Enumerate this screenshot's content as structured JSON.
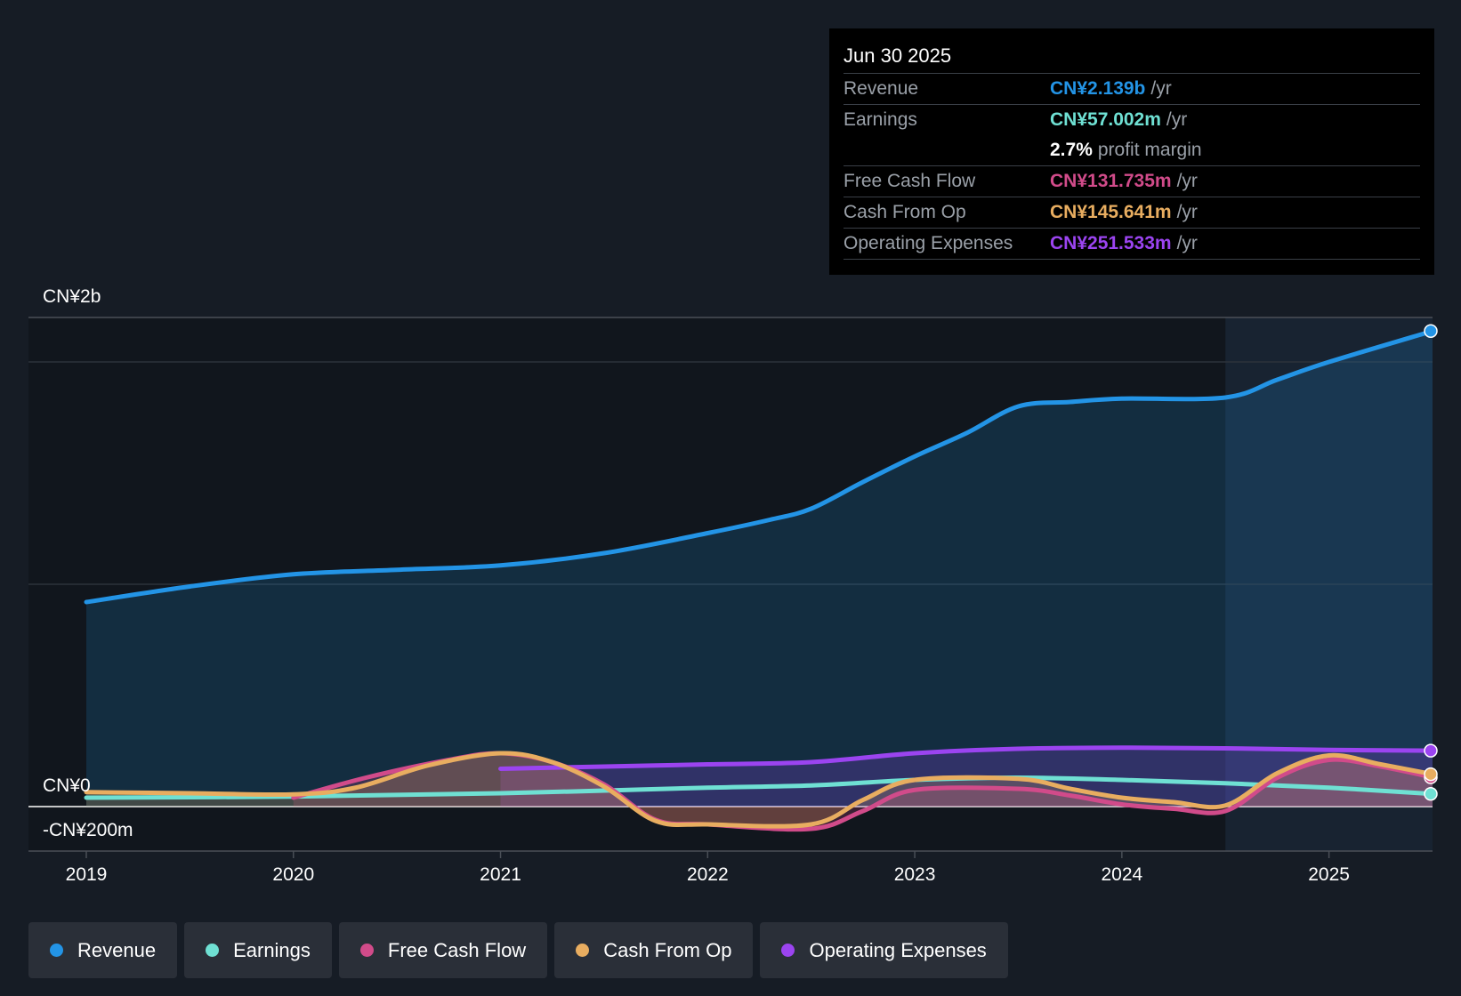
{
  "chart_data": {
    "type": "line",
    "x_years": [
      2019,
      2020,
      2021,
      2022,
      2023,
      2024,
      2025
    ],
    "y_labels": {
      "top": "CN¥2b",
      "zero": "CN¥0",
      "bottom": "-CN¥200m"
    },
    "ylim": [
      -200,
      2200
    ],
    "xlim": [
      2019.0,
      2025.5
    ],
    "forecast_start": 2024.5,
    "series": [
      {
        "name": "Revenue",
        "key": "revenue",
        "color": "#2394e6",
        "area": true,
        "points": [
          [
            2019.0,
            920
          ],
          [
            2019.5,
            990
          ],
          [
            2020.0,
            1045
          ],
          [
            2020.5,
            1065
          ],
          [
            2021.0,
            1085
          ],
          [
            2021.5,
            1140
          ],
          [
            2022.0,
            1230
          ],
          [
            2022.3,
            1290
          ],
          [
            2022.5,
            1340
          ],
          [
            2022.75,
            1460
          ],
          [
            2023.0,
            1575
          ],
          [
            2023.25,
            1680
          ],
          [
            2023.5,
            1800
          ],
          [
            2023.75,
            1820
          ],
          [
            2024.0,
            1835
          ],
          [
            2024.5,
            1840
          ],
          [
            2024.75,
            1920
          ],
          [
            2025.0,
            2000
          ],
          [
            2025.5,
            2139
          ]
        ]
      },
      {
        "name": "Earnings",
        "key": "earnings",
        "color": "#6fe0d3",
        "area": false,
        "points": [
          [
            2019.0,
            40
          ],
          [
            2020.0,
            45
          ],
          [
            2021.0,
            60
          ],
          [
            2022.0,
            85
          ],
          [
            2022.5,
            95
          ],
          [
            2023.0,
            120
          ],
          [
            2023.5,
            130
          ],
          [
            2024.0,
            120
          ],
          [
            2024.5,
            105
          ],
          [
            2025.0,
            85
          ],
          [
            2025.5,
            57
          ]
        ]
      },
      {
        "name": "Free Cash Flow",
        "key": "fcf",
        "color": "#d14b8a",
        "area": true,
        "points": [
          [
            2020.0,
            40
          ],
          [
            2020.35,
            130
          ],
          [
            2020.75,
            210
          ],
          [
            2021.0,
            240
          ],
          [
            2021.25,
            200
          ],
          [
            2021.5,
            100
          ],
          [
            2021.75,
            -60
          ],
          [
            2022.0,
            -80
          ],
          [
            2022.5,
            -100
          ],
          [
            2022.75,
            -20
          ],
          [
            2023.0,
            75
          ],
          [
            2023.5,
            80
          ],
          [
            2023.75,
            50
          ],
          [
            2024.0,
            10
          ],
          [
            2024.25,
            -10
          ],
          [
            2024.5,
            -20
          ],
          [
            2024.75,
            130
          ],
          [
            2025.0,
            210
          ],
          [
            2025.25,
            180
          ],
          [
            2025.5,
            131.7
          ]
        ]
      },
      {
        "name": "Cash From Op",
        "key": "cfo",
        "color": "#e8ad60",
        "area": true,
        "points": [
          [
            2019.0,
            65
          ],
          [
            2019.5,
            60
          ],
          [
            2020.0,
            55
          ],
          [
            2020.3,
            85
          ],
          [
            2020.65,
            185
          ],
          [
            2021.0,
            240
          ],
          [
            2021.25,
            200
          ],
          [
            2021.5,
            90
          ],
          [
            2021.75,
            -65
          ],
          [
            2022.0,
            -80
          ],
          [
            2022.5,
            -80
          ],
          [
            2022.75,
            30
          ],
          [
            2023.0,
            120
          ],
          [
            2023.5,
            125
          ],
          [
            2023.75,
            80
          ],
          [
            2024.0,
            40
          ],
          [
            2024.25,
            20
          ],
          [
            2024.5,
            5
          ],
          [
            2024.75,
            150
          ],
          [
            2025.0,
            230
          ],
          [
            2025.25,
            190
          ],
          [
            2025.5,
            145.6
          ]
        ]
      },
      {
        "name": "Operating Expenses",
        "key": "opex",
        "color": "#9b44f0",
        "area": true,
        "points": [
          [
            2021.0,
            170
          ],
          [
            2021.5,
            180
          ],
          [
            2022.0,
            190
          ],
          [
            2022.5,
            200
          ],
          [
            2023.0,
            240
          ],
          [
            2023.5,
            260
          ],
          [
            2024.0,
            265
          ],
          [
            2024.5,
            262
          ],
          [
            2025.0,
            255
          ],
          [
            2025.5,
            251.5
          ]
        ]
      }
    ]
  },
  "tooltip": {
    "date": "Jun 30 2025",
    "rows": [
      {
        "label": "Revenue",
        "value": "CN¥2.139b",
        "unit": "/yr",
        "color": "#2394e6"
      },
      {
        "label": "Earnings",
        "value": "CN¥57.002m",
        "unit": "/yr",
        "color": "#6fe0d3"
      },
      {
        "label": "",
        "value": "2.7%",
        "unit": "profit margin",
        "color": "#ffffff"
      },
      {
        "label": "Free Cash Flow",
        "value": "CN¥131.735m",
        "unit": "/yr",
        "color": "#d14b8a"
      },
      {
        "label": "Cash From Op",
        "value": "CN¥145.641m",
        "unit": "/yr",
        "color": "#e8ad60"
      },
      {
        "label": "Operating Expenses",
        "value": "CN¥251.533m",
        "unit": "/yr",
        "color": "#9b44f0"
      }
    ]
  },
  "legend": [
    {
      "label": "Revenue",
      "color": "#2394e6"
    },
    {
      "label": "Earnings",
      "color": "#6fe0d3"
    },
    {
      "label": "Free Cash Flow",
      "color": "#d14b8a"
    },
    {
      "label": "Cash From Op",
      "color": "#e8ad60"
    },
    {
      "label": "Operating Expenses",
      "color": "#9b44f0"
    }
  ]
}
